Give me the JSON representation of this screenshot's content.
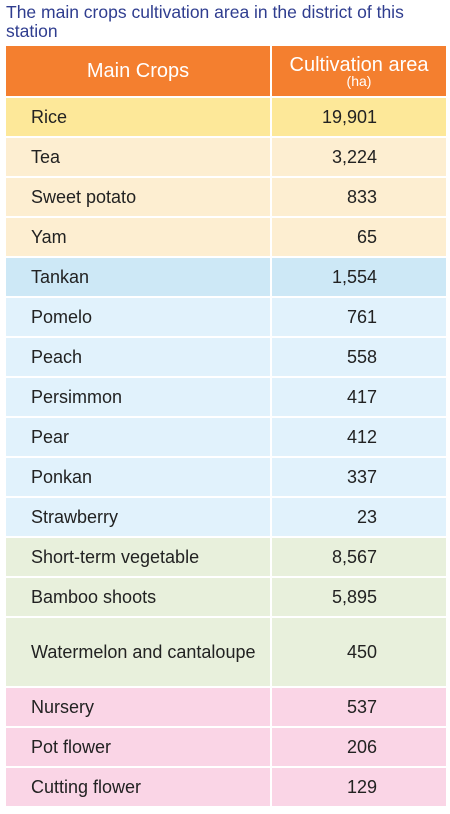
{
  "title": "The main crops cultivation area in the district of this station",
  "header": {
    "crop_label": "Main Crops",
    "area_label": "Cultivation area",
    "unit": "(ha)"
  },
  "colors": {
    "header": "#f47f2f",
    "title": "#2f3d8f",
    "grain_highlight": "#fde899",
    "grain": "#fdeed1",
    "fruit_highlight": "#cde8f6",
    "fruit": "#e1f2fc",
    "vegetable": "#e8f0dc",
    "flower": "#fad5e6"
  },
  "rows": [
    {
      "crop": "Rice",
      "area": "19,901"
    },
    {
      "crop": "Tea",
      "area": "3,224"
    },
    {
      "crop": "Sweet potato",
      "area": "833"
    },
    {
      "crop": "Yam",
      "area": "65"
    },
    {
      "crop": "Tankan",
      "area": "1,554"
    },
    {
      "crop": "Pomelo",
      "area": "761"
    },
    {
      "crop": "Peach",
      "area": "558"
    },
    {
      "crop": "Persimmon",
      "area": "417"
    },
    {
      "crop": "Pear",
      "area": "412"
    },
    {
      "crop": "Ponkan",
      "area": "337"
    },
    {
      "crop": "Strawberry",
      "area": "23"
    },
    {
      "crop": "Short-term vegetable",
      "area": "8,567"
    },
    {
      "crop": "Bamboo shoots",
      "area": "5,895"
    },
    {
      "crop": "Watermelon and cantaloupe",
      "area": "450"
    },
    {
      "crop": "Nursery",
      "area": "537"
    },
    {
      "crop": "Pot flower",
      "area": "206"
    },
    {
      "crop": "Cutting flower",
      "area": "129"
    }
  ]
}
